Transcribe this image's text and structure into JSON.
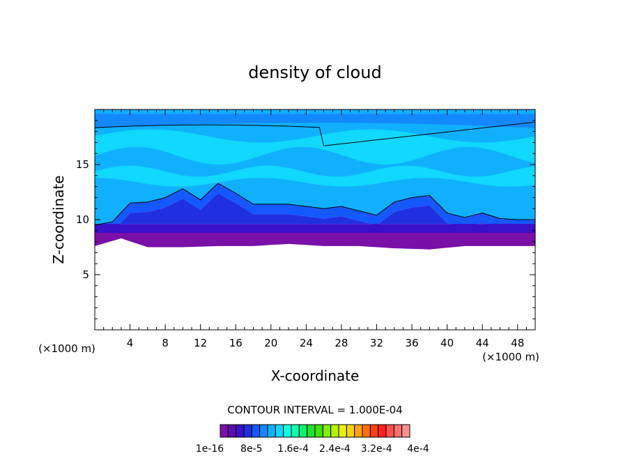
{
  "chart_data": {
    "type": "heatmap",
    "title": "density of cloud",
    "xlabel": "X-coordinate",
    "ylabel": "Z-coordinate",
    "x_unit": "(×1000 m)",
    "x_unit_right": "(×1000 m)",
    "xlim": [
      0,
      50
    ],
    "ylim": [
      0,
      20
    ],
    "x_ticks": [
      4,
      8,
      12,
      16,
      20,
      24,
      28,
      32,
      36,
      40,
      44,
      48
    ],
    "y_ticks": [
      5,
      10,
      15
    ],
    "contour_interval_text": "CONTOUR INTERVAL = 1.000E-04",
    "colorbar": {
      "colors": [
        "#7a10a8",
        "#5a0cb0",
        "#3a10c8",
        "#2030e0",
        "#1458ff",
        "#1488ff",
        "#10b0ff",
        "#10d8ff",
        "#10ffe8",
        "#10ffb0",
        "#10f070",
        "#20e030",
        "#40e010",
        "#80ec10",
        "#b8f010",
        "#e8f010",
        "#ffd010",
        "#ffa010",
        "#ff7010",
        "#ff4010",
        "#ff2020",
        "#ff5050",
        "#ff7070",
        "#ff9090"
      ],
      "labels": [
        "1e-16",
        "8e-5",
        "1.6e-4",
        "2.4e-4",
        "3.2e-4",
        "4e-4"
      ]
    },
    "cloud_top_profile": [
      {
        "x": 0,
        "z": 9.5
      },
      {
        "x": 2,
        "z": 9.8
      },
      {
        "x": 4,
        "z": 11.5
      },
      {
        "x": 6,
        "z": 11.6
      },
      {
        "x": 8,
        "z": 12.0
      },
      {
        "x": 10,
        "z": 12.8
      },
      {
        "x": 12,
        "z": 11.8
      },
      {
        "x": 14,
        "z": 13.3
      },
      {
        "x": 16,
        "z": 12.4
      },
      {
        "x": 18,
        "z": 11.4
      },
      {
        "x": 20,
        "z": 11.4
      },
      {
        "x": 22,
        "z": 11.4
      },
      {
        "x": 24,
        "z": 11.2
      },
      {
        "x": 26,
        "z": 11.0
      },
      {
        "x": 28,
        "z": 11.2
      },
      {
        "x": 30,
        "z": 10.8
      },
      {
        "x": 32,
        "z": 10.4
      },
      {
        "x": 34,
        "z": 11.6
      },
      {
        "x": 36,
        "z": 12.0
      },
      {
        "x": 38,
        "z": 12.2
      },
      {
        "x": 40,
        "z": 10.6
      },
      {
        "x": 42,
        "z": 10.2
      },
      {
        "x": 44,
        "z": 10.6
      },
      {
        "x": 46,
        "z": 10.1
      },
      {
        "x": 48,
        "z": 10.0
      },
      {
        "x": 50,
        "z": 10.0
      }
    ],
    "cloud_base_profile": [
      {
        "x": 0,
        "z": 7.6
      },
      {
        "x": 3,
        "z": 8.3
      },
      {
        "x": 6,
        "z": 7.5
      },
      {
        "x": 10,
        "z": 7.5
      },
      {
        "x": 14,
        "z": 7.6
      },
      {
        "x": 18,
        "z": 7.6
      },
      {
        "x": 22,
        "z": 7.8
      },
      {
        "x": 26,
        "z": 7.6
      },
      {
        "x": 30,
        "z": 7.6
      },
      {
        "x": 34,
        "z": 7.4
      },
      {
        "x": 38,
        "z": 7.3
      },
      {
        "x": 42,
        "z": 7.6
      },
      {
        "x": 46,
        "z": 7.6
      },
      {
        "x": 50,
        "z": 7.6
      }
    ]
  }
}
